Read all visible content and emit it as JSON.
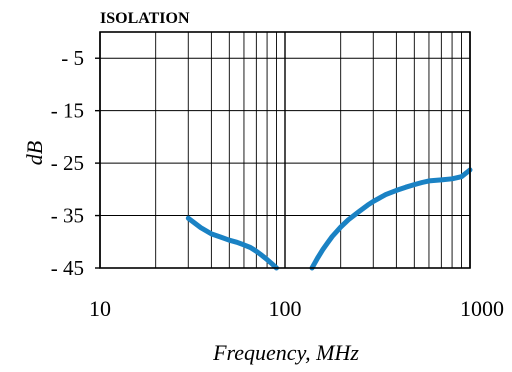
{
  "chart_data": {
    "type": "line",
    "title": "ISOLATION",
    "xlabel": "Frequency, MHz",
    "ylabel": "dB",
    "xscale": "log",
    "xlim": [
      10,
      1000
    ],
    "ylim": [
      -45,
      0
    ],
    "x_ticks": [
      10,
      100,
      1000
    ],
    "x_tick_labels": [
      "10",
      "100",
      "1000"
    ],
    "y_ticks": [
      -5,
      -15,
      -25,
      -35,
      -45
    ],
    "y_tick_labels": [
      "-  5",
      "- 15",
      "- 25",
      "- 35",
      "- 45"
    ],
    "grid": true,
    "line_color": "#1a82c4",
    "series": [
      {
        "segments": [
          {
            "x": [
              30,
              35,
              40,
              45,
              50,
              55,
              60,
              65,
              70,
              75,
              80,
              85,
              90
            ],
            "y": [
              -35.5,
              -37.3,
              -38.5,
              -39.1,
              -39.7,
              -40.1,
              -40.6,
              -41.1,
              -41.8,
              -42.6,
              -43.4,
              -44.2,
              -45.0
            ]
          },
          {
            "x": [
              140,
              145,
              150,
              160,
              170,
              180,
              200,
              220,
              250,
              280,
              300,
              350,
              400,
              450,
              500,
              550,
              600,
              700,
              800,
              900,
              1000
            ],
            "y": [
              -45.0,
              -44.0,
              -43.1,
              -41.5,
              -40.2,
              -39.0,
              -37.2,
              -35.8,
              -34.3,
              -33.0,
              -32.3,
              -31.0,
              -30.2,
              -29.6,
              -29.1,
              -28.7,
              -28.4,
              -28.2,
              -28.0,
              -27.6,
              -26.3
            ]
          }
        ]
      }
    ]
  }
}
